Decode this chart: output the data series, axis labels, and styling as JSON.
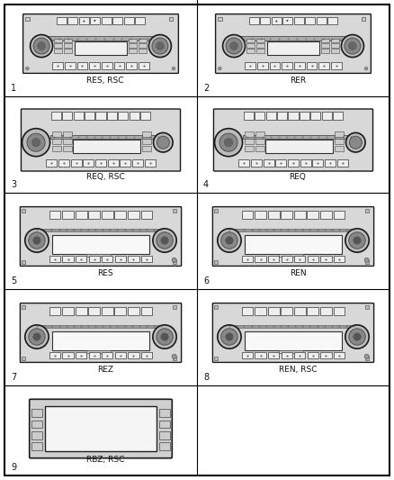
{
  "background": "#ffffff",
  "cells": [
    {
      "row": 0,
      "col": 0,
      "num": "1",
      "label": "RES, RSC",
      "type": "A"
    },
    {
      "row": 0,
      "col": 1,
      "num": "2",
      "label": "RER",
      "type": "A2"
    },
    {
      "row": 1,
      "col": 0,
      "num": "3",
      "label": "REQ, RSC",
      "type": "B"
    },
    {
      "row": 1,
      "col": 1,
      "num": "4",
      "label": "REQ",
      "type": "B2"
    },
    {
      "row": 2,
      "col": 0,
      "num": "5",
      "label": "RES",
      "type": "C"
    },
    {
      "row": 2,
      "col": 1,
      "num": "6",
      "label": "REN",
      "type": "C2"
    },
    {
      "row": 3,
      "col": 0,
      "num": "7",
      "label": "REZ",
      "type": "C"
    },
    {
      "row": 3,
      "col": 1,
      "num": "8",
      "label": "REN, RSC",
      "type": "C2"
    },
    {
      "row": 4,
      "col": 0,
      "num": "9",
      "label": "RBZ, RSC",
      "type": "D"
    }
  ],
  "col_div": 219,
  "row_tops": [
    533,
    426,
    319,
    212,
    105,
    5
  ],
  "lf": 6.5,
  "nf": 7
}
